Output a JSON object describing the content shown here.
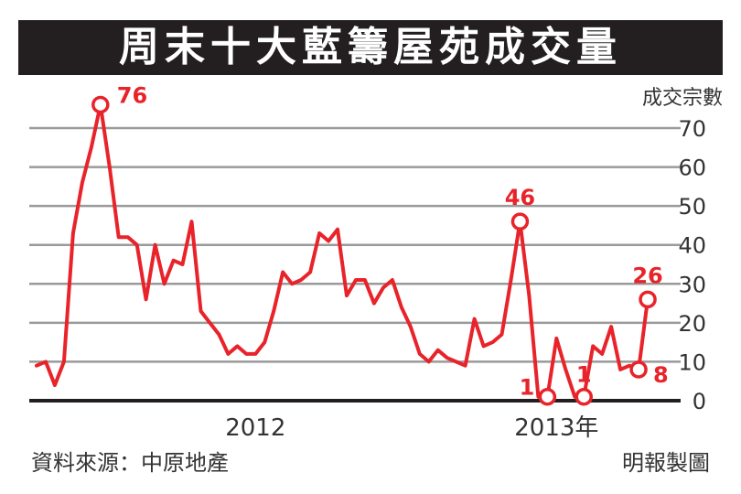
{
  "title": "周末十大藍籌屋苑成交量",
  "colors": {
    "line": "#e8232a",
    "grid": "#9a9a9a",
    "axis": "#231f20",
    "title_bg": "#231f20",
    "text": "#333333"
  },
  "chart_data": {
    "type": "line",
    "ylabel": "成交宗數",
    "ylim": [
      0,
      70
    ],
    "yticks": [
      0,
      10,
      20,
      30,
      40,
      50,
      60,
      70
    ],
    "xlim": [
      0,
      68
    ],
    "xtick_labels": [
      {
        "label": "2012",
        "x": 24
      },
      {
        "label": "2013年",
        "x": 57
      }
    ],
    "grid": true,
    "series": [
      {
        "values": [
          9,
          10,
          4,
          10,
          43,
          56,
          65,
          76,
          60,
          42,
          42,
          40,
          26,
          40,
          30,
          36,
          35,
          46,
          23,
          20,
          17,
          12,
          14,
          12,
          12,
          15,
          23,
          33,
          30,
          31,
          33,
          43,
          41,
          44,
          27,
          31,
          31,
          25,
          29,
          31,
          24,
          19,
          12,
          10,
          13,
          11,
          10,
          9,
          21,
          14,
          15,
          17,
          31,
          46,
          27,
          1,
          1,
          16,
          8,
          1,
          1,
          14,
          12,
          19,
          8,
          9,
          8,
          26
        ],
        "annotations": [
          {
            "index": 7,
            "label": "76"
          },
          {
            "index": 53,
            "label": "46"
          },
          {
            "index": 56,
            "label": "1"
          },
          {
            "index": 60,
            "label": "1"
          },
          {
            "index": 66,
            "label": "8"
          },
          {
            "index": 67,
            "label": "26"
          }
        ]
      }
    ]
  },
  "footer": {
    "source": "資料來源：中原地產",
    "credit": "明報製圖"
  }
}
